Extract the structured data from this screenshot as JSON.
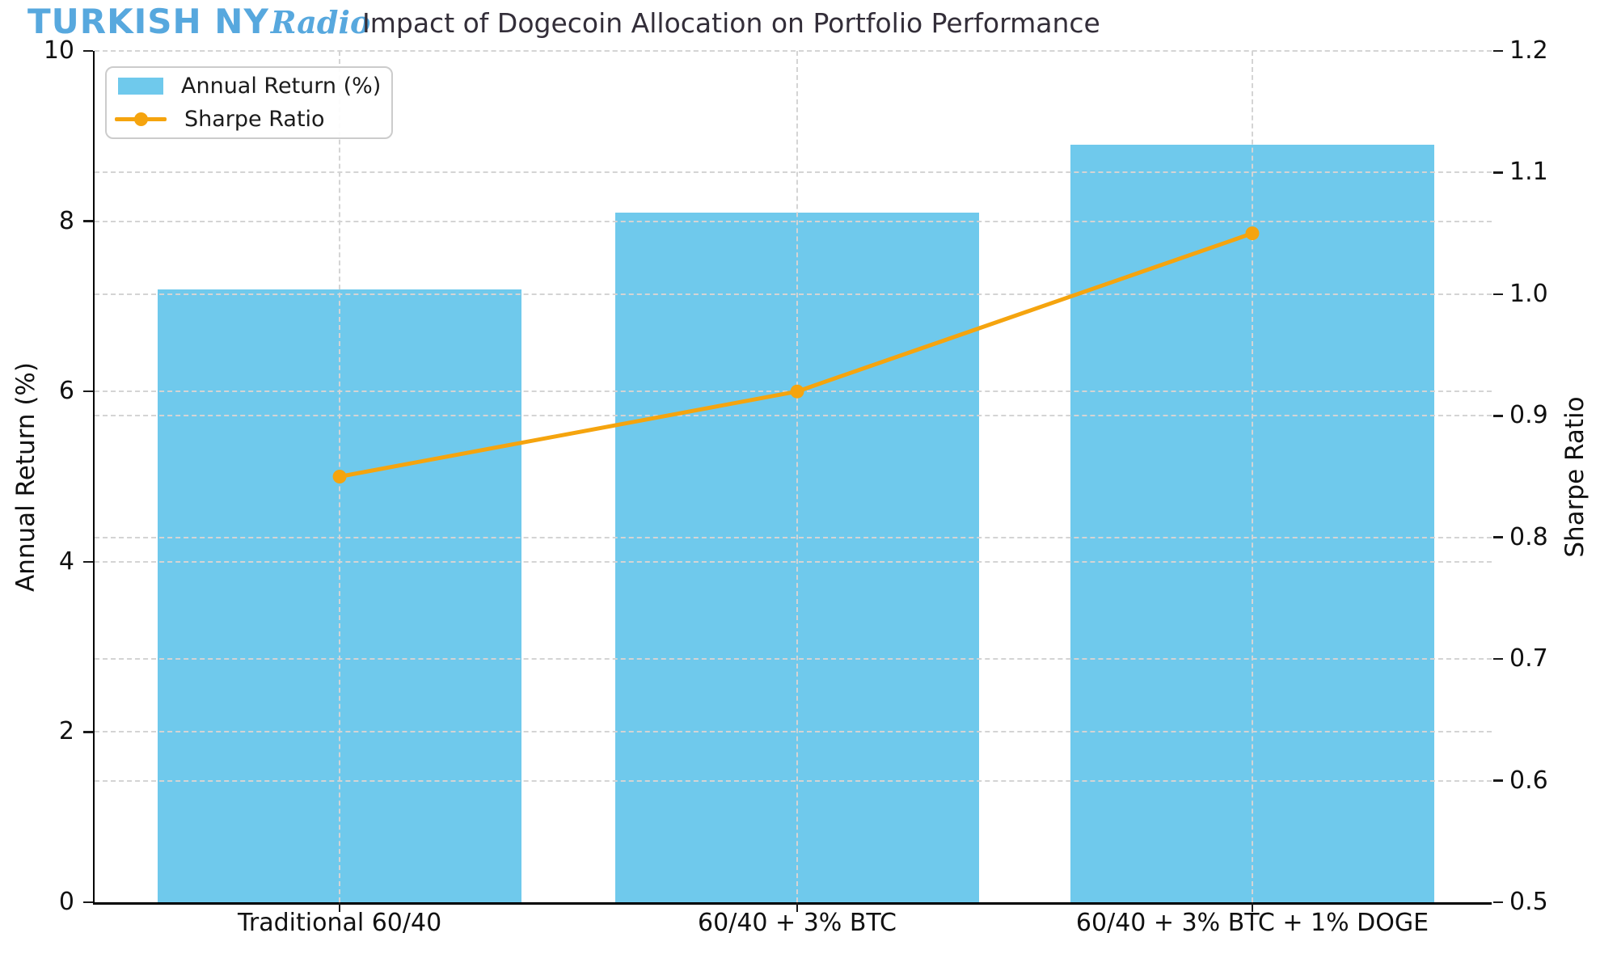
{
  "logo": {
    "main": "TURKISH NY",
    "script": "Radio"
  },
  "title": "Impact of Dogecoin Allocation on Portfolio Performance",
  "legend": {
    "position": "upper left",
    "items": [
      {
        "label": "Annual Return (%)",
        "swatch": "bar"
      },
      {
        "label": "Sharpe Ratio",
        "swatch": "line-marker"
      }
    ]
  },
  "chart_data": {
    "type": "bar+line",
    "categories": [
      "Traditional 60/40",
      "60/40 + 3% BTC",
      "60/40 + 3% BTC + 1% DOGE"
    ],
    "series": [
      {
        "name": "Annual Return (%)",
        "type": "bar",
        "axis": "left",
        "values": [
          7.2,
          8.1,
          8.9
        ]
      },
      {
        "name": "Sharpe Ratio",
        "type": "line",
        "axis": "right",
        "values": [
          0.85,
          0.92,
          1.05
        ]
      }
    ],
    "left_axis": {
      "label": "Annual Return (%)",
      "min": 0,
      "max": 10,
      "ticks": [
        "0",
        "2",
        "4",
        "6",
        "8",
        "10"
      ]
    },
    "right_axis": {
      "label": "Sharpe Ratio",
      "min": 0.5,
      "max": 1.2,
      "ticks": [
        "0.5",
        "0.6",
        "0.7",
        "0.8",
        "0.9",
        "1.0",
        "1.1",
        "1.2"
      ]
    },
    "grid": {
      "style": "dashed",
      "horizontal": "both-axes-ticks",
      "vertical": "category-centers"
    },
    "legend_position": "upper left"
  },
  "colors": {
    "bar": "#6FC9EC",
    "line": "#F5A40E",
    "logo_blue": "#57A8DE",
    "title_text": "#332E39",
    "grid": "#D4D4D4",
    "tick_text": "#111111"
  }
}
